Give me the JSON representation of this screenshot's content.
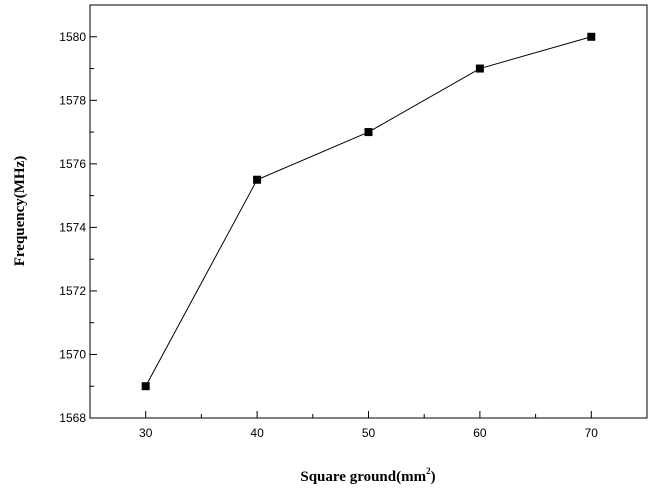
{
  "chart_data": {
    "type": "line",
    "title": "",
    "xlabel": "Square ground(mm",
    "xlabel_sup": "2",
    "xlabel_close": ")",
    "ylabel": "Frequency(MHz)",
    "x": [
      30,
      40,
      50,
      60,
      70
    ],
    "y": [
      1569,
      1575.5,
      1577,
      1579,
      1580
    ],
    "xlim": [
      25,
      75
    ],
    "ylim": [
      1568,
      1581
    ],
    "x_ticks": [
      30,
      40,
      50,
      60,
      70
    ],
    "x_tick_labels": [
      "30",
      "40",
      "50",
      "60",
      "70"
    ],
    "y_ticks": [
      1568,
      1570,
      1572,
      1574,
      1576,
      1578,
      1580
    ],
    "y_tick_labels": [
      "1568",
      "1570",
      "1572",
      "1574",
      "1576",
      "1578",
      "1580"
    ],
    "marker": "square",
    "line_color": "#000000",
    "marker_color": "#000000",
    "grid": false,
    "legend": "none"
  }
}
